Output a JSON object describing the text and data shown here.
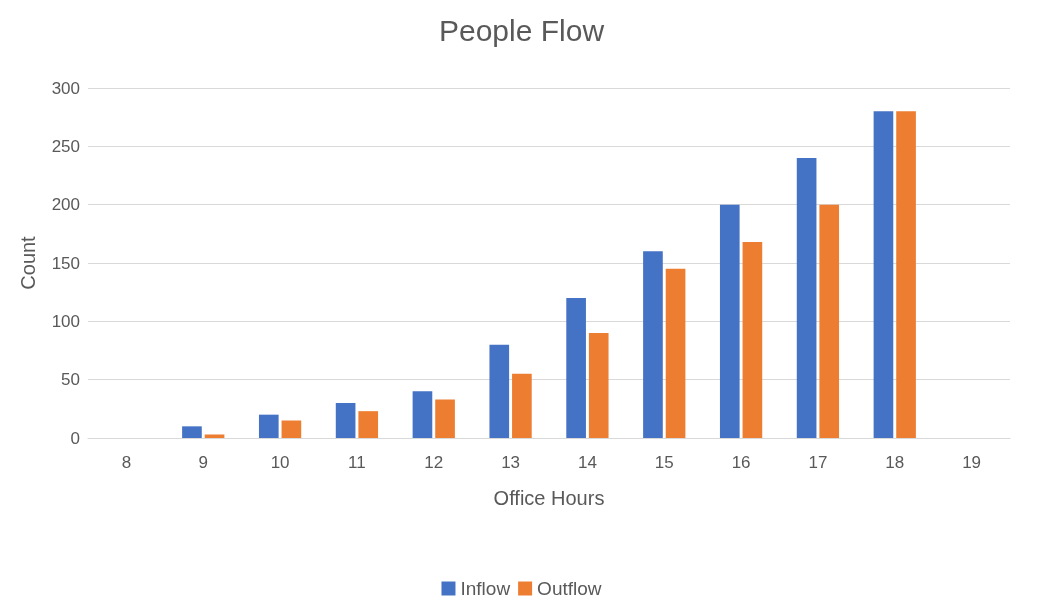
{
  "chart_data": {
    "type": "bar",
    "title": "People Flow",
    "xlabel": "Office Hours",
    "ylabel": "Count",
    "categories": [
      "8",
      "9",
      "10",
      "11",
      "12",
      "13",
      "14",
      "15",
      "16",
      "17",
      "18",
      "19"
    ],
    "series": [
      {
        "name": "Inflow",
        "color": "#4472c4",
        "values": [
          null,
          10,
          20,
          30,
          40,
          80,
          120,
          160,
          200,
          240,
          280,
          null
        ]
      },
      {
        "name": "Outflow",
        "color": "#ed7d31",
        "values": [
          null,
          3,
          15,
          23,
          33,
          55,
          90,
          145,
          168,
          200,
          280,
          null
        ]
      }
    ],
    "ylim": [
      0,
      300
    ],
    "yticks": [
      0,
      50,
      100,
      150,
      200,
      250,
      300
    ],
    "grid": "y",
    "legend": "bottom"
  }
}
